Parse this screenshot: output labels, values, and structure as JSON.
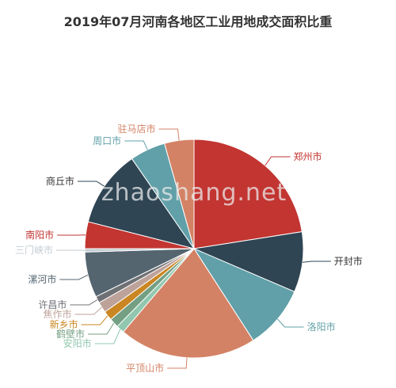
{
  "chart_data": {
    "type": "pie",
    "title": "2019年07月河南各地区工业用地成交面积比重",
    "slices": [
      {
        "label": "郑州市",
        "value": 22.7,
        "color": "#c23531"
      },
      {
        "label": "开封市",
        "value": 9.0,
        "color": "#2f4554"
      },
      {
        "label": "洛阳市",
        "value": 9.5,
        "color": "#61a0a8"
      },
      {
        "label": "平顶山市",
        "value": 20.5,
        "color": "#d48265"
      },
      {
        "label": "安阳市",
        "value": 1.2,
        "color": "#91c7ae"
      },
      {
        "label": "鹤壁市",
        "value": 1.4,
        "color": "#749f83"
      },
      {
        "label": "新乡市",
        "value": 1.4,
        "color": "#ca8622"
      },
      {
        "label": "焦作市",
        "value": 1.6,
        "color": "#bda29a"
      },
      {
        "label": "许昌市",
        "value": 1.0,
        "color": "#6e7074"
      },
      {
        "label": "漯河市",
        "value": 6.8,
        "color": "#546570"
      },
      {
        "label": "三门峡市",
        "value": 0.5,
        "color": "#c4ccd3"
      },
      {
        "label": "南阳市",
        "value": 4.0,
        "color": "#c23531"
      },
      {
        "label": "商丘市",
        "value": 11.5,
        "color": "#2f4554"
      },
      {
        "label": "周口市",
        "value": 5.3,
        "color": "#61a0a8"
      },
      {
        "label": "驻马店市",
        "value": 4.4,
        "color": "#d48265"
      }
    ]
  },
  "watermark": "zhaoshang.net"
}
